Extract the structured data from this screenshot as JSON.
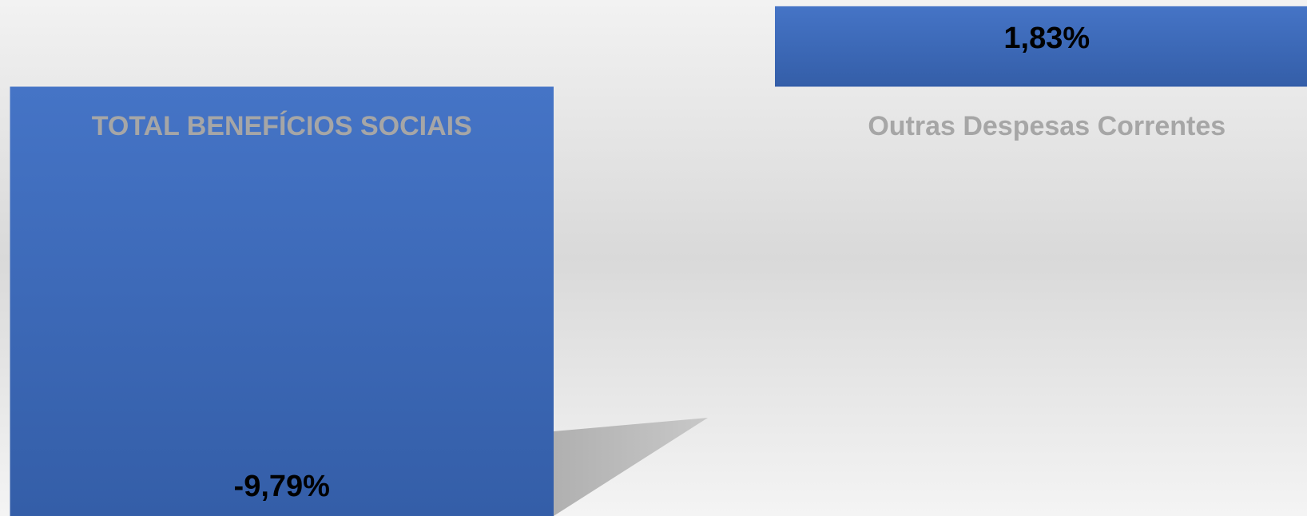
{
  "chart_data": {
    "type": "bar",
    "categories": [
      "TOTAL BENEFÍCIOS SOCIAIS",
      "Outras Despesas Correntes"
    ],
    "values": [
      -9.79,
      1.83
    ],
    "value_labels": [
      "-9,79%",
      "1,83%"
    ],
    "color": "#4472c4"
  }
}
